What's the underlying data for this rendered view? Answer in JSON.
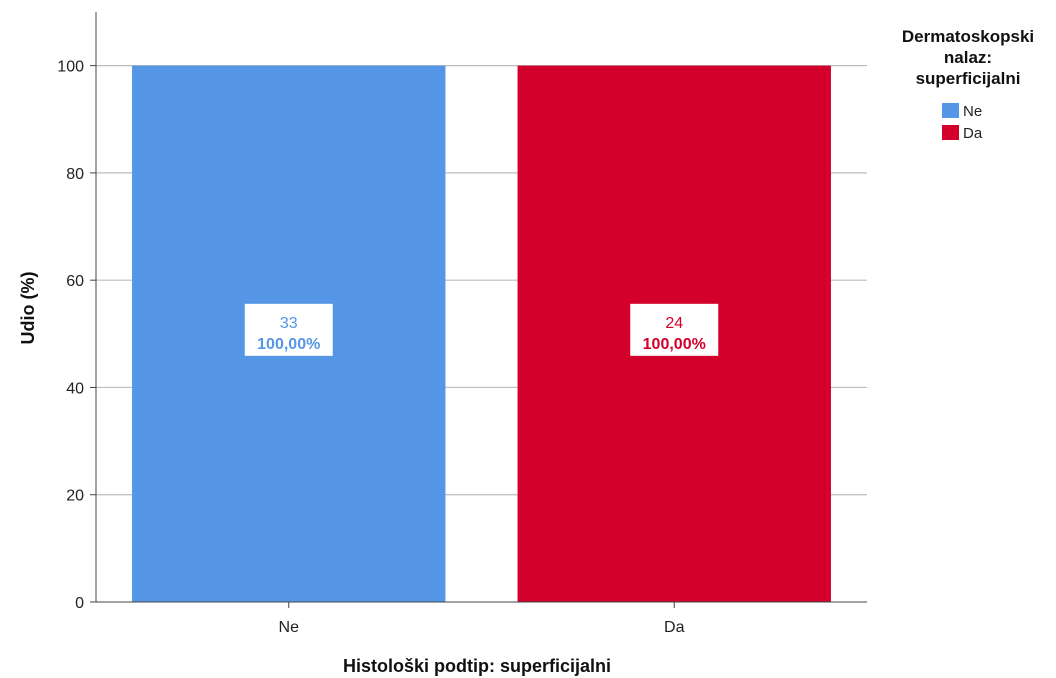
{
  "chart_data": {
    "type": "bar",
    "xlabel": "Histološki podtip: superficijalni",
    "ylabel": "Udio (%)",
    "ylim": [
      0,
      110
    ],
    "yticks": [
      0,
      20,
      40,
      60,
      80,
      100
    ],
    "grid": true,
    "categories": [
      "Ne",
      "Da"
    ],
    "series": [
      {
        "name": "Ne",
        "color": "#5596e6",
        "values": [
          100,
          null
        ],
        "counts": [
          "33",
          null
        ],
        "percent_labels": [
          "100,00%",
          null
        ]
      },
      {
        "name": "Da",
        "color": "#d3002c",
        "values": [
          null,
          100
        ],
        "counts": [
          null,
          "24"
        ],
        "percent_labels": [
          null,
          "100,00%"
        ]
      }
    ],
    "legend": {
      "title_lines": [
        "Dermatoskopski",
        "nalaz:",
        "superficijalni"
      ],
      "position": "top-right",
      "items": [
        {
          "label": "Ne",
          "color": "#5596e6"
        },
        {
          "label": "Da",
          "color": "#d3002c"
        }
      ]
    }
  }
}
